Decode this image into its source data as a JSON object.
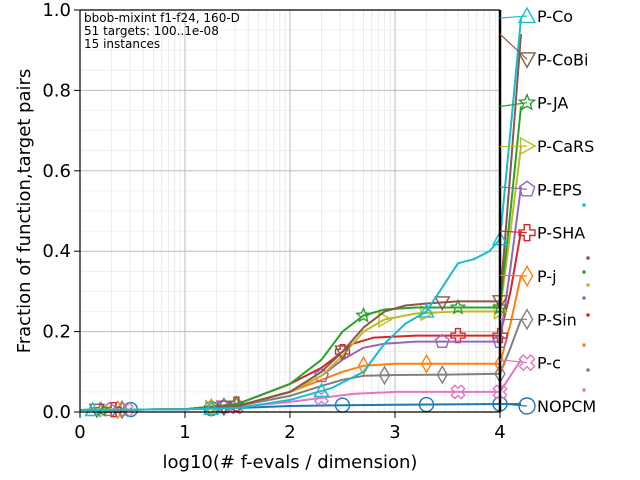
{
  "chart_data": {
    "type": "line",
    "title": "",
    "xlabel": "log10(# f-evals / dimension)",
    "ylabel": "Fraction of function,target pairs",
    "xlim": [
      0,
      4.2
    ],
    "ylim": [
      0,
      1.0
    ],
    "x_ticks": [
      "0",
      "1",
      "2",
      "3",
      "4"
    ],
    "y_ticks": [
      "0.0",
      "0.2",
      "0.4",
      "0.6",
      "0.8",
      "1.0"
    ],
    "grid": true,
    "legend_position": "right",
    "annotations": [
      "bbob-mixint f1-f24, 160-D",
      "51 targets: 100..1e-08",
      "15 instances"
    ],
    "budget_line_x": 4,
    "series": [
      {
        "name": "P-Co",
        "color": "#17becf",
        "marker": "triangle-up",
        "final": 0.98,
        "points": [
          [
            0,
            0.005
          ],
          [
            1,
            0.007
          ],
          [
            1.5,
            0.01
          ],
          [
            2,
            0.03
          ],
          [
            2.4,
            0.06
          ],
          [
            2.7,
            0.1
          ],
          [
            2.9,
            0.17
          ],
          [
            3.1,
            0.22
          ],
          [
            3.3,
            0.25
          ],
          [
            3.5,
            0.33
          ],
          [
            3.6,
            0.37
          ],
          [
            3.75,
            0.38
          ],
          [
            3.9,
            0.4
          ],
          [
            4,
            0.43
          ],
          [
            4.1,
            0.7
          ],
          [
            4.2,
            0.98
          ]
        ]
      },
      {
        "name": "P-CoBi",
        "color": "#8c564b",
        "marker": "triangle-down",
        "final": 0.94,
        "points": [
          [
            0,
            0.005
          ],
          [
            1,
            0.007
          ],
          [
            1.5,
            0.015
          ],
          [
            2,
            0.05
          ],
          [
            2.3,
            0.1
          ],
          [
            2.5,
            0.15
          ],
          [
            2.7,
            0.21
          ],
          [
            2.9,
            0.25
          ],
          [
            3.1,
            0.265
          ],
          [
            3.3,
            0.27
          ],
          [
            3.6,
            0.275
          ],
          [
            4,
            0.275
          ],
          [
            4.1,
            0.6
          ],
          [
            4.2,
            0.94
          ]
        ]
      },
      {
        "name": "P-JA",
        "color": "#2ca02c",
        "marker": "star",
        "final": 0.76,
        "points": [
          [
            0,
            0.005
          ],
          [
            1,
            0.007
          ],
          [
            1.5,
            0.02
          ],
          [
            2,
            0.07
          ],
          [
            2.3,
            0.13
          ],
          [
            2.5,
            0.2
          ],
          [
            2.7,
            0.24
          ],
          [
            2.9,
            0.255
          ],
          [
            3.2,
            0.26
          ],
          [
            3.6,
            0.26
          ],
          [
            4,
            0.26
          ],
          [
            4.1,
            0.5
          ],
          [
            4.2,
            0.76
          ]
        ]
      },
      {
        "name": "P-CaRS",
        "color": "#bcbd22",
        "marker": "triangle-right",
        "final": 0.66,
        "points": [
          [
            0,
            0.005
          ],
          [
            1,
            0.007
          ],
          [
            1.5,
            0.015
          ],
          [
            2,
            0.05
          ],
          [
            2.3,
            0.09
          ],
          [
            2.5,
            0.14
          ],
          [
            2.7,
            0.2
          ],
          [
            2.9,
            0.23
          ],
          [
            3.2,
            0.245
          ],
          [
            3.6,
            0.25
          ],
          [
            4,
            0.25
          ],
          [
            4.1,
            0.45
          ],
          [
            4.2,
            0.66
          ]
        ]
      },
      {
        "name": "P-EPS",
        "color": "#9467bd",
        "marker": "pentagon",
        "final": 0.56,
        "points": [
          [
            0,
            0.005
          ],
          [
            1,
            0.007
          ],
          [
            1.5,
            0.015
          ],
          [
            2,
            0.05
          ],
          [
            2.3,
            0.09
          ],
          [
            2.5,
            0.13
          ],
          [
            2.7,
            0.16
          ],
          [
            2.9,
            0.17
          ],
          [
            3.2,
            0.175
          ],
          [
            3.6,
            0.175
          ],
          [
            4,
            0.175
          ],
          [
            4.1,
            0.36
          ],
          [
            4.2,
            0.56
          ]
        ]
      },
      {
        "name": "P-SHA",
        "color": "#d62728",
        "marker": "plus",
        "final": 0.45,
        "points": [
          [
            0,
            0.005
          ],
          [
            1,
            0.007
          ],
          [
            1.5,
            0.02
          ],
          [
            2,
            0.07
          ],
          [
            2.3,
            0.11
          ],
          [
            2.5,
            0.15
          ],
          [
            2.6,
            0.17
          ],
          [
            2.8,
            0.185
          ],
          [
            3.2,
            0.19
          ],
          [
            3.6,
            0.19
          ],
          [
            4,
            0.19
          ],
          [
            4.1,
            0.3
          ],
          [
            4.2,
            0.45
          ]
        ]
      },
      {
        "name": "P-j",
        "color": "#ff7f0e",
        "marker": "diamond",
        "final": 0.34,
        "points": [
          [
            0,
            0.005
          ],
          [
            1,
            0.007
          ],
          [
            1.5,
            0.015
          ],
          [
            2,
            0.05
          ],
          [
            2.3,
            0.08
          ],
          [
            2.5,
            0.1
          ],
          [
            2.7,
            0.115
          ],
          [
            3,
            0.12
          ],
          [
            3.5,
            0.12
          ],
          [
            4,
            0.12
          ],
          [
            4.1,
            0.22
          ],
          [
            4.2,
            0.34
          ]
        ]
      },
      {
        "name": "P-Sin",
        "color": "#7f7f7f",
        "marker": "diamond",
        "final": 0.23,
        "points": [
          [
            0,
            0.005
          ],
          [
            1,
            0.007
          ],
          [
            1.5,
            0.015
          ],
          [
            2,
            0.04
          ],
          [
            2.3,
            0.065
          ],
          [
            2.5,
            0.08
          ],
          [
            2.7,
            0.09
          ],
          [
            3,
            0.092
          ],
          [
            3.5,
            0.093
          ],
          [
            4,
            0.095
          ],
          [
            4.1,
            0.16
          ],
          [
            4.2,
            0.23
          ]
        ]
      },
      {
        "name": "P-c",
        "color": "#e377c2",
        "marker": "x",
        "final": 0.13,
        "points": [
          [
            0,
            0.005
          ],
          [
            1,
            0.007
          ],
          [
            1.5,
            0.012
          ],
          [
            2,
            0.025
          ],
          [
            2.3,
            0.035
          ],
          [
            2.6,
            0.045
          ],
          [
            3,
            0.05
          ],
          [
            3.5,
            0.05
          ],
          [
            4,
            0.05
          ],
          [
            4.1,
            0.09
          ],
          [
            4.2,
            0.13
          ]
        ]
      },
      {
        "name": "NOPCM",
        "color": "#1f77b4",
        "marker": "circle",
        "final": 0.02,
        "points": [
          [
            0,
            0.005
          ],
          [
            1,
            0.007
          ],
          [
            1.5,
            0.01
          ],
          [
            2,
            0.015
          ],
          [
            2.5,
            0.017
          ],
          [
            3,
            0.018
          ],
          [
            3.5,
            0.019
          ],
          [
            4,
            0.02
          ],
          [
            4.2,
            0.02
          ]
        ]
      }
    ]
  }
}
